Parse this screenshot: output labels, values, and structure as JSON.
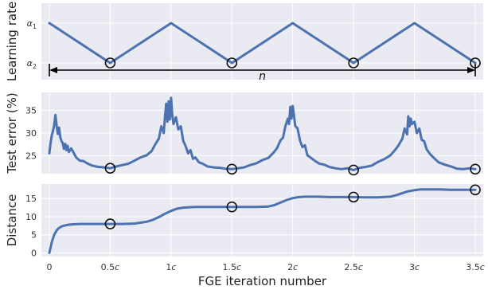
{
  "chart_data": [
    {
      "type": "line",
      "ylabel": "Learning rate",
      "xlim": [
        0,
        3.5
      ],
      "ylim": [
        0,
        1
      ],
      "yticks": [
        {
          "value": 1,
          "label": "α1"
        },
        {
          "value": 0,
          "label": "α2"
        }
      ],
      "grid": true,
      "series": [
        {
          "x": [
            0,
            0.5,
            1,
            1.5,
            2,
            2.5,
            3,
            3.5
          ],
          "y": [
            1,
            0,
            1,
            0,
            1,
            0,
            1,
            0
          ]
        }
      ],
      "markers": {
        "x": [
          0.5,
          1.5,
          2.5,
          3.5
        ],
        "y": [
          0,
          0,
          0,
          0
        ]
      },
      "annotation": {
        "label": "n",
        "x_from": 0,
        "x_to": 3.5,
        "y": -0.18,
        "type": "double-arrow"
      }
    },
    {
      "type": "line",
      "ylabel": "Test error (%)",
      "xlim": [
        0,
        3.5
      ],
      "ylim": [
        21,
        39
      ],
      "yticks": [
        {
          "value": 25,
          "label": "25"
        },
        {
          "value": 30,
          "label": "30"
        },
        {
          "value": 35,
          "label": "35"
        }
      ],
      "grid": true,
      "series": [
        {
          "x": [
            0,
            0.01,
            0.02,
            0.03,
            0.04,
            0.05,
            0.06,
            0.07,
            0.08,
            0.09,
            0.1,
            0.11,
            0.12,
            0.13,
            0.14,
            0.15,
            0.16,
            0.18,
            0.2,
            0.22,
            0.25,
            0.28,
            0.31,
            0.35,
            0.4,
            0.45,
            0.5,
            0.55,
            0.6,
            0.65,
            0.7,
            0.75,
            0.8,
            0.84,
            0.87,
            0.9,
            0.92,
            0.94,
            0.95,
            0.96,
            0.97,
            0.98,
            0.99,
            1.0,
            1.01,
            1.02,
            1.04,
            1.06,
            1.08,
            1.1,
            1.12,
            1.14,
            1.16,
            1.18,
            1.2,
            1.23,
            1.26,
            1.3,
            1.35,
            1.4,
            1.45,
            1.5,
            1.55,
            1.6,
            1.65,
            1.7,
            1.75,
            1.8,
            1.84,
            1.87,
            1.9,
            1.92,
            1.94,
            1.96,
            1.97,
            1.98,
            1.99,
            2.0,
            2.01,
            2.02,
            2.04,
            2.06,
            2.08,
            2.1,
            2.12,
            2.15,
            2.18,
            2.22,
            2.26,
            2.3,
            2.35,
            2.4,
            2.45,
            2.5,
            2.55,
            2.6,
            2.65,
            2.7,
            2.75,
            2.8,
            2.84,
            2.87,
            2.9,
            2.92,
            2.94,
            2.95,
            2.96,
            2.97,
            2.98,
            3.0,
            3.02,
            3.04,
            3.06,
            3.08,
            3.1,
            3.13,
            3.16,
            3.2,
            3.25,
            3.3,
            3.35,
            3.4,
            3.45,
            3.5
          ],
          "y": [
            25.5,
            27.8,
            29.5,
            30.5,
            31.8,
            34.0,
            31.5,
            29.8,
            31.2,
            29.0,
            28.2,
            27.8,
            26.5,
            27.6,
            26.2,
            27.2,
            25.8,
            26.6,
            25.6,
            24.6,
            23.9,
            23.8,
            23.3,
            22.8,
            22.5,
            22.4,
            22.2,
            22.6,
            22.9,
            23.2,
            23.9,
            24.6,
            25.1,
            26.0,
            27.5,
            28.8,
            31.5,
            30.0,
            33.5,
            36.5,
            32.5,
            37.0,
            33.0,
            37.8,
            34.0,
            32.0,
            33.5,
            30.8,
            31.5,
            28.3,
            27.1,
            25.5,
            26.2,
            24.3,
            24.6,
            23.5,
            23.2,
            22.6,
            22.4,
            22.3,
            22.1,
            22.0,
            22.2,
            22.4,
            22.9,
            23.3,
            24.0,
            24.5,
            25.6,
            26.6,
            28.4,
            29.0,
            31.5,
            33.2,
            32.0,
            35.8,
            33.2,
            36.0,
            34.0,
            31.6,
            31.0,
            28.3,
            26.9,
            27.3,
            25.1,
            24.5,
            23.9,
            23.2,
            23.0,
            22.5,
            22.2,
            22.0,
            22.2,
            21.8,
            22.3,
            22.5,
            22.8,
            23.6,
            24.2,
            25.0,
            26.2,
            27.3,
            28.7,
            31.0,
            29.7,
            33.7,
            31.5,
            33.2,
            32.0,
            32.5,
            30.0,
            31.0,
            28.5,
            28.2,
            26.4,
            25.3,
            24.5,
            23.5,
            23.0,
            22.6,
            22.1,
            22.0,
            22.2,
            22.0
          ]
        }
      ],
      "markers": {
        "x": [
          0.5,
          1.5,
          2.5,
          3.5
        ],
        "y": [
          22.2,
          22.0,
          21.8,
          22.0
        ]
      }
    },
    {
      "type": "line",
      "ylabel": "Distance",
      "xlabel": "FGE iteration number",
      "xlim": [
        0,
        3.5
      ],
      "ylim": [
        -1,
        19
      ],
      "yticks": [
        {
          "value": 0,
          "label": "0"
        },
        {
          "value": 5,
          "label": "5"
        },
        {
          "value": 10,
          "label": "10"
        },
        {
          "value": 15,
          "label": "15"
        }
      ],
      "xticks": [
        {
          "value": 0,
          "label": "0",
          "suffix": ""
        },
        {
          "value": 0.5,
          "label": "0.5",
          "suffix": "c"
        },
        {
          "value": 1,
          "label": "1",
          "suffix": "c"
        },
        {
          "value": 1.5,
          "label": "1.5",
          "suffix": "c"
        },
        {
          "value": 2,
          "label": "2",
          "suffix": "c"
        },
        {
          "value": 2.5,
          "label": "2.5",
          "suffix": "c"
        },
        {
          "value": 3,
          "label": "3",
          "suffix": "c"
        },
        {
          "value": 3.5,
          "label": "3.5",
          "suffix": "c"
        }
      ],
      "grid": true,
      "series": [
        {
          "x": [
            0,
            0.02,
            0.04,
            0.06,
            0.08,
            0.1,
            0.13,
            0.16,
            0.2,
            0.25,
            0.3,
            0.4,
            0.5,
            0.6,
            0.7,
            0.8,
            0.85,
            0.9,
            0.95,
            1.0,
            1.05,
            1.1,
            1.15,
            1.2,
            1.3,
            1.4,
            1.5,
            1.6,
            1.7,
            1.8,
            1.85,
            1.9,
            1.95,
            2.0,
            2.05,
            2.1,
            2.15,
            2.2,
            2.3,
            2.4,
            2.5,
            2.6,
            2.7,
            2.8,
            2.85,
            2.9,
            2.95,
            3.0,
            3.05,
            3.1,
            3.15,
            3.2,
            3.3,
            3.4,
            3.5
          ],
          "y": [
            0,
            3.0,
            5.0,
            6.2,
            6.9,
            7.3,
            7.6,
            7.8,
            7.9,
            8.0,
            8.0,
            8.0,
            8.0,
            8.0,
            8.1,
            8.6,
            9.1,
            9.9,
            10.8,
            11.6,
            12.2,
            12.5,
            12.6,
            12.7,
            12.7,
            12.7,
            12.7,
            12.7,
            12.7,
            12.8,
            13.2,
            13.9,
            14.6,
            15.1,
            15.4,
            15.5,
            15.5,
            15.5,
            15.4,
            15.4,
            15.4,
            15.3,
            15.3,
            15.5,
            15.9,
            16.5,
            17.0,
            17.3,
            17.5,
            17.5,
            17.5,
            17.5,
            17.4,
            17.4,
            17.4
          ]
        }
      ],
      "markers": {
        "x": [
          0.5,
          1.5,
          2.5,
          3.5
        ],
        "y": [
          8.0,
          12.7,
          15.4,
          17.4
        ]
      }
    }
  ]
}
